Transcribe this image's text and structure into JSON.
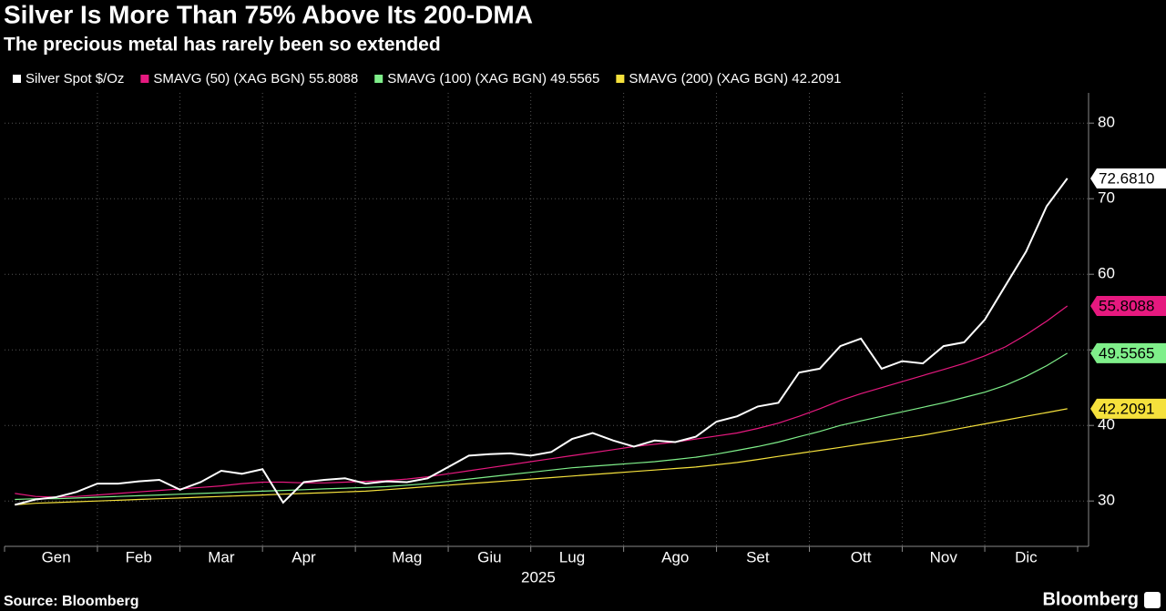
{
  "chart_data": {
    "type": "line",
    "title": "Silver Is More Than 75% Above Its 200-DMA",
    "subtitle": "The precious metal has rarely been so extended",
    "x_label": "2025",
    "source": "Source: Bloomberg",
    "brand": "Bloomberg",
    "categories": [
      null,
      null,
      "Gen",
      null,
      null,
      null,
      "Feb",
      null,
      null,
      null,
      "Mar",
      null,
      null,
      null,
      "Apr",
      null,
      null,
      null,
      null,
      "Mag",
      null,
      null,
      null,
      "Giu",
      null,
      null,
      null,
      "Lug",
      null,
      null,
      null,
      null,
      "Ago",
      null,
      null,
      null,
      "Set",
      null,
      null,
      null,
      null,
      "Ott",
      null,
      null,
      null,
      "Nov",
      null,
      null,
      null,
      "Dic",
      null,
      null
    ],
    "series": [
      {
        "name": "Silver Spot $/Oz",
        "color": "#ffffff",
        "last_label": "72.6810",
        "values": [
          29.5,
          30.2,
          30.5,
          31.2,
          32.3,
          32.3,
          32.6,
          32.8,
          31.5,
          32.5,
          34.0,
          33.6,
          34.2,
          29.8,
          32.5,
          32.8,
          33.0,
          32.3,
          32.6,
          32.5,
          33.0,
          34.5,
          36.0,
          36.2,
          36.3,
          36.0,
          36.5,
          38.2,
          39.0,
          38.0,
          37.2,
          38.0,
          37.8,
          38.5,
          40.5,
          41.2,
          42.5,
          43.0,
          47.0,
          47.5,
          50.5,
          51.5,
          47.5,
          48.5,
          48.2,
          50.5,
          51.0,
          54.0,
          58.5,
          63.0,
          69.0,
          72.681
        ]
      },
      {
        "name": "SMAVG (50) (XAG BGN) 55.8088",
        "color": "#e6197f",
        "last_label": "55.8088",
        "values": [
          31.0,
          30.6,
          30.5,
          30.6,
          30.8,
          31.0,
          31.2,
          31.4,
          31.6,
          31.8,
          32.0,
          32.3,
          32.5,
          32.5,
          32.4,
          32.4,
          32.5,
          32.6,
          32.7,
          32.9,
          33.2,
          33.6,
          34.0,
          34.4,
          34.8,
          35.2,
          35.6,
          36.0,
          36.4,
          36.8,
          37.2,
          37.5,
          37.8,
          38.2,
          38.6,
          39.0,
          39.6,
          40.3,
          41.2,
          42.2,
          43.3,
          44.2,
          45.0,
          45.8,
          46.6,
          47.4,
          48.2,
          49.2,
          50.4,
          52.0,
          53.8,
          55.8088
        ]
      },
      {
        "name": "SMAVG (100) (XAG BGN) 49.5565",
        "color": "#7fef8a",
        "last_label": "49.5565",
        "values": [
          30.2,
          30.3,
          30.3,
          30.4,
          30.5,
          30.6,
          30.7,
          30.8,
          30.9,
          31.0,
          31.1,
          31.2,
          31.3,
          31.4,
          31.5,
          31.6,
          31.7,
          31.8,
          31.9,
          32.1,
          32.3,
          32.6,
          32.9,
          33.2,
          33.5,
          33.8,
          34.1,
          34.4,
          34.6,
          34.8,
          35.0,
          35.2,
          35.5,
          35.8,
          36.2,
          36.7,
          37.2,
          37.8,
          38.5,
          39.2,
          40.0,
          40.6,
          41.2,
          41.8,
          42.4,
          43.0,
          43.7,
          44.4,
          45.3,
          46.5,
          47.9,
          49.5565
        ]
      },
      {
        "name": "SMAVG (200) (XAG BGN) 42.2091",
        "color": "#f5e13c",
        "last_label": "42.2091",
        "values": [
          29.5,
          29.7,
          29.8,
          29.9,
          30.0,
          30.1,
          30.2,
          30.3,
          30.4,
          30.5,
          30.6,
          30.7,
          30.8,
          30.9,
          31.0,
          31.1,
          31.2,
          31.3,
          31.5,
          31.7,
          31.9,
          32.1,
          32.3,
          32.5,
          32.7,
          32.9,
          33.1,
          33.3,
          33.5,
          33.7,
          33.9,
          34.1,
          34.3,
          34.5,
          34.8,
          35.1,
          35.5,
          35.9,
          36.3,
          36.7,
          37.1,
          37.5,
          37.9,
          38.3,
          38.7,
          39.2,
          39.7,
          40.2,
          40.7,
          41.2,
          41.7,
          42.2091
        ]
      }
    ],
    "ylim": [
      24,
      84
    ],
    "yticks": [
      30,
      40,
      50,
      60,
      70,
      80
    ],
    "grid": true
  }
}
